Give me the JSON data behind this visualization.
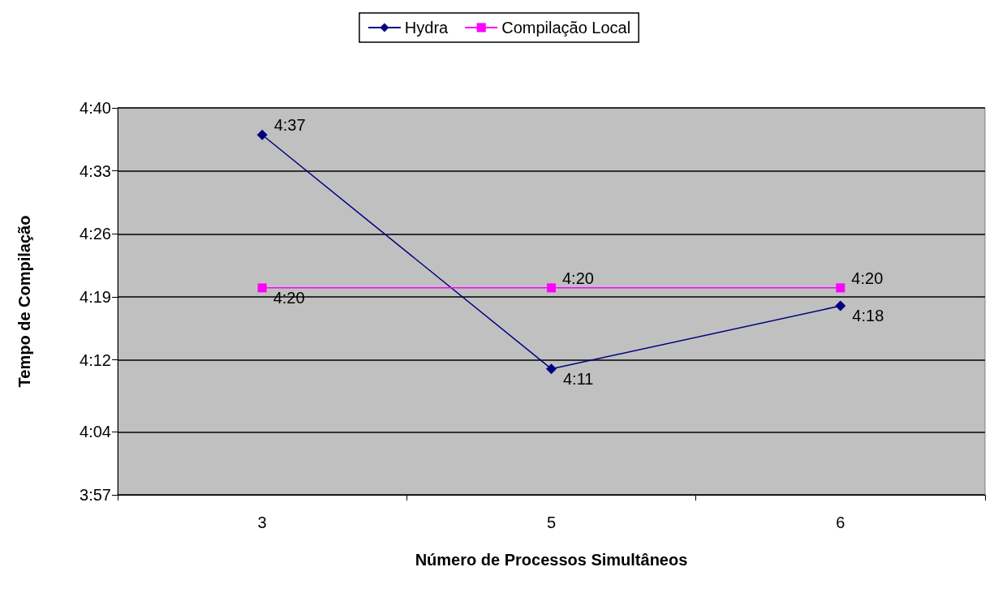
{
  "chart_data": {
    "type": "line",
    "xlabel": "Número de Processos Simultâneos",
    "ylabel": "Tempo de Compilação",
    "categories": [
      "3",
      "5",
      "6"
    ],
    "series": [
      {
        "name": "Hydra",
        "color": "#000080",
        "marker": "diamond",
        "values": [
          277,
          251,
          258
        ],
        "value_labels": [
          "4:37",
          "4:11",
          "4:18"
        ]
      },
      {
        "name": "Compilação Local",
        "color": "#ff00ff",
        "marker": "square",
        "values": [
          260,
          260,
          260
        ],
        "value_labels": [
          "4:20",
          "4:20",
          "4:20"
        ]
      }
    ],
    "ylim": [
      237,
      280
    ],
    "yticks": [
      {
        "value": 237,
        "label": "3:57"
      },
      {
        "value": 244,
        "label": "4:04"
      },
      {
        "value": 252,
        "label": "4:12"
      },
      {
        "value": 259,
        "label": "4:19"
      },
      {
        "value": 266,
        "label": "4:26"
      },
      {
        "value": 273,
        "label": "4:33"
      },
      {
        "value": 280,
        "label": "4:40"
      }
    ],
    "grid": "y",
    "legend": "top"
  }
}
